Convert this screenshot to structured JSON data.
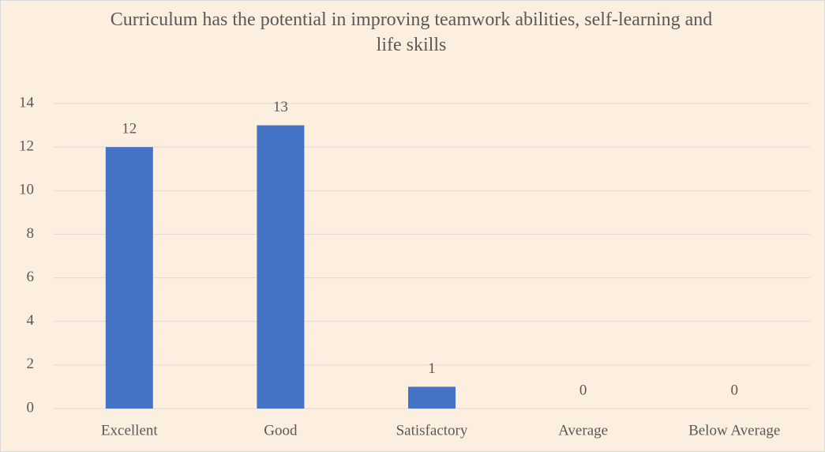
{
  "chart_data": {
    "type": "bar",
    "title": "Curriculum has the potential in improving teamwork abilities, self-learning and life skills",
    "categories": [
      "Excellent",
      "Good",
      "Satisfactory",
      "Average",
      "Below Average"
    ],
    "values": [
      12,
      13,
      1,
      0,
      0
    ],
    "color": "#4472c4",
    "ylim": [
      0,
      14
    ],
    "yticks": [
      0,
      2,
      4,
      6,
      8,
      10,
      12,
      14
    ],
    "grid": true
  }
}
